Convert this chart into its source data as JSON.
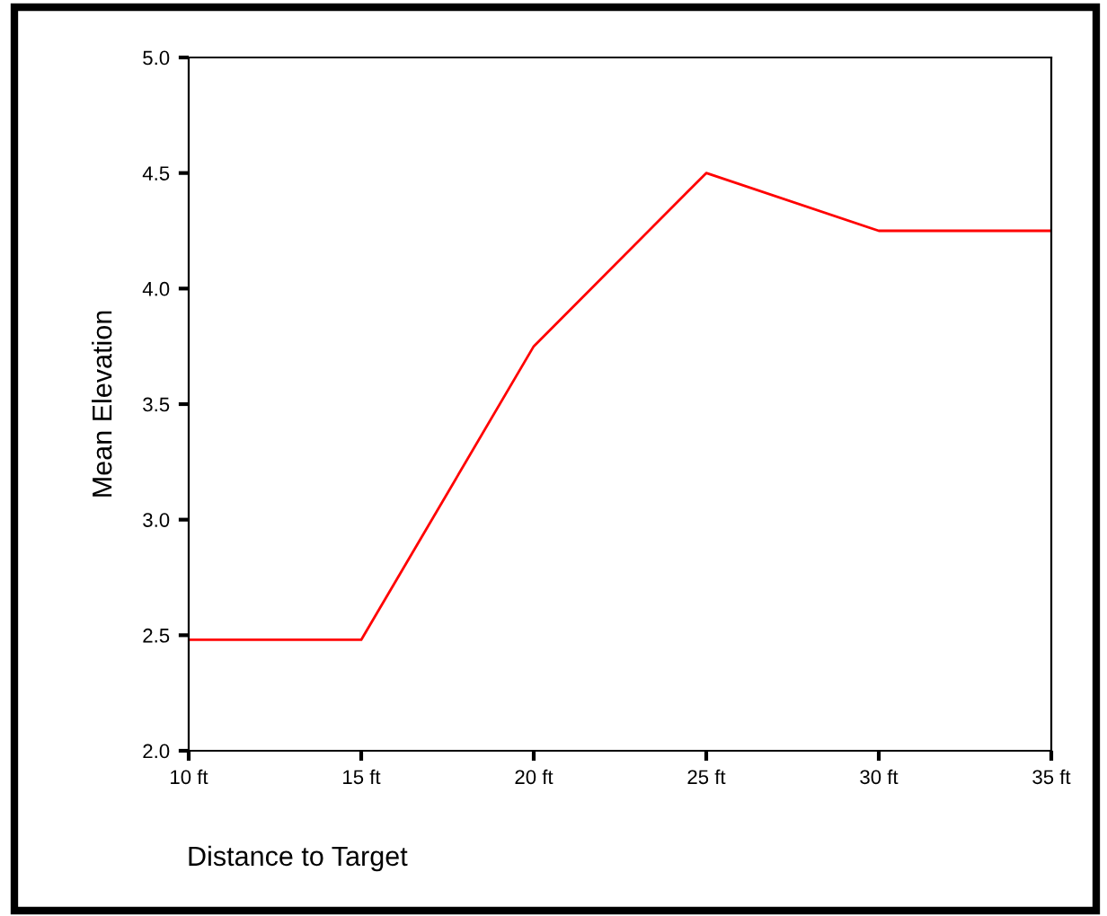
{
  "chart_data": {
    "type": "line",
    "xlabel": "Distance to Target",
    "ylabel": "Mean Elevation",
    "categories": [
      "10 ft",
      "15 ft",
      "20 ft",
      "25 ft",
      "30 ft",
      "35 ft"
    ],
    "series": [
      {
        "color": "#ff0000",
        "values": [
          2.48,
          2.48,
          3.75,
          4.5,
          4.25,
          4.25
        ]
      }
    ],
    "ylim": [
      2,
      5
    ],
    "yticks": [
      {
        "value": 2,
        "label": "2.0"
      },
      {
        "value": 2.5,
        "label": "2.5"
      },
      {
        "value": 3,
        "label": "3.0"
      },
      {
        "value": 3.5,
        "label": "3.5"
      },
      {
        "value": 4,
        "label": "4.0"
      },
      {
        "value": 4.5,
        "label": "4.5"
      },
      {
        "value": 5,
        "label": "5.0"
      }
    ],
    "grid": false,
    "legend": false,
    "marker": "none",
    "line_style": "solid"
  }
}
